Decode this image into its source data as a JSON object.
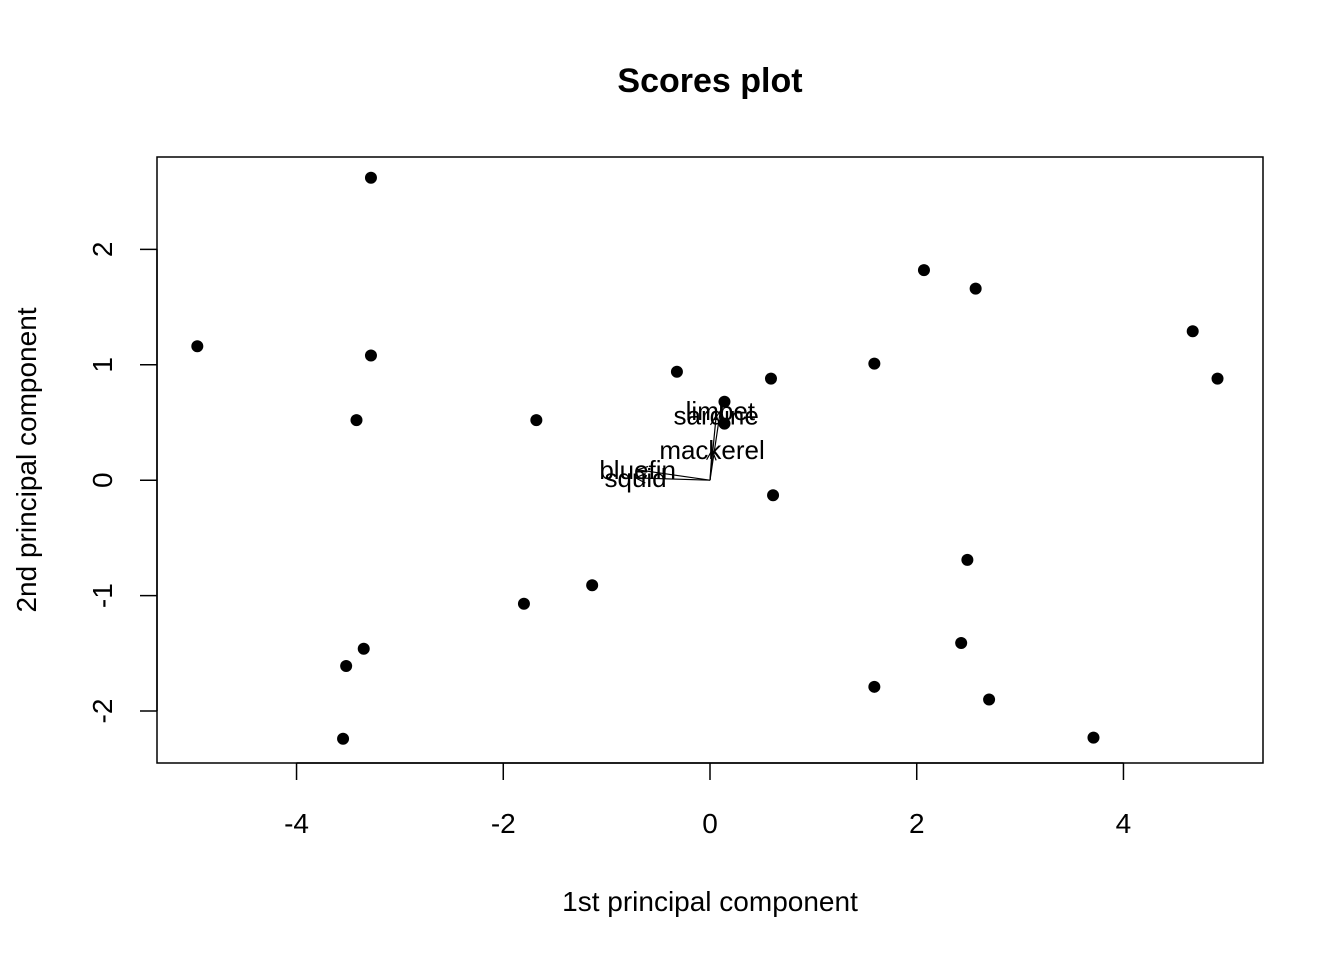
{
  "chart_data": {
    "type": "scatter",
    "title": "Scores plot",
    "xlabel": "1st principal component",
    "ylabel": "2nd principal component",
    "xlim": [
      -5.35,
      5.35
    ],
    "ylim": [
      -2.45,
      2.8
    ],
    "xticks": [
      -4,
      -2,
      0,
      2,
      4
    ],
    "yticks": [
      -2,
      -1,
      0,
      1,
      2
    ],
    "xtick_labels": [
      "-4",
      "-2",
      "0",
      "2",
      "4"
    ],
    "ytick_labels": [
      "-2",
      "-1",
      "0",
      "1",
      "2"
    ],
    "grid": false,
    "colors": {
      "points": "#000000",
      "arrows": "#000000",
      "frame": "#000000"
    },
    "series": [
      {
        "points": [
          {
            "x": -3.28,
            "y": 2.62
          },
          {
            "x": -4.96,
            "y": 1.16
          },
          {
            "x": -3.28,
            "y": 1.08
          },
          {
            "x": -3.42,
            "y": 0.52
          },
          {
            "x": -1.68,
            "y": 0.52
          },
          {
            "x": -0.32,
            "y": 0.94
          },
          {
            "x": 0.14,
            "y": 0.68
          },
          {
            "x": 0.14,
            "y": 0.49
          },
          {
            "x": 0.59,
            "y": 0.88
          },
          {
            "x": 0.61,
            "y": -0.13
          },
          {
            "x": 1.59,
            "y": 1.01
          },
          {
            "x": 2.07,
            "y": 1.82
          },
          {
            "x": 2.57,
            "y": 1.66
          },
          {
            "x": 4.67,
            "y": 1.29
          },
          {
            "x": 4.91,
            "y": 0.88
          },
          {
            "x": 2.49,
            "y": -0.69
          },
          {
            "x": 2.43,
            "y": -1.41
          },
          {
            "x": 2.7,
            "y": -1.9
          },
          {
            "x": 1.59,
            "y": -1.79
          },
          {
            "x": 3.71,
            "y": -2.23
          },
          {
            "x": -1.14,
            "y": -0.91
          },
          {
            "x": -1.8,
            "y": -1.07
          },
          {
            "x": -3.35,
            "y": -1.46
          },
          {
            "x": -3.52,
            "y": -1.61
          },
          {
            "x": -3.55,
            "y": -2.24
          }
        ]
      }
    ],
    "loadings": [
      {
        "name": "limpet",
        "x": 0.1,
        "y": 0.6
      },
      {
        "name": "sardine",
        "x": 0.06,
        "y": 0.56
      },
      {
        "name": "mackerel",
        "x": 0.02,
        "y": 0.26
      },
      {
        "name": "bluefin",
        "x": -0.7,
        "y": 0.09
      },
      {
        "name": "squid",
        "x": -0.72,
        "y": 0.02
      }
    ]
  }
}
